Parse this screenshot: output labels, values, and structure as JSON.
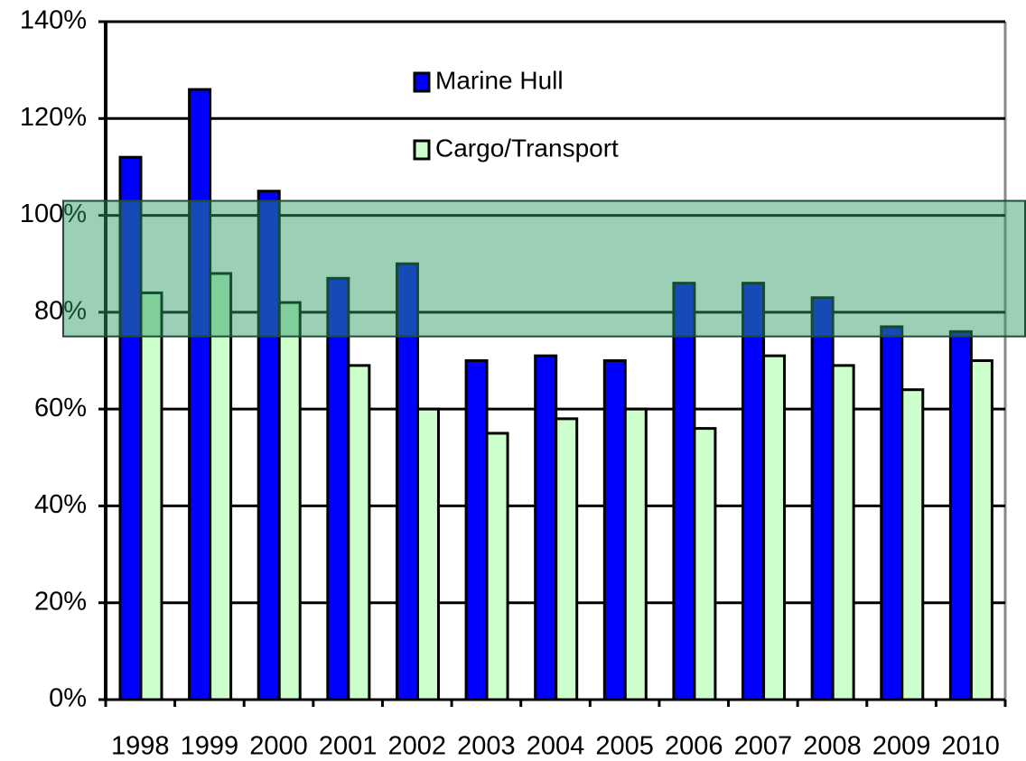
{
  "chart_data": {
    "type": "bar",
    "categories": [
      "1998",
      "1999",
      "2000",
      "2001",
      "2002",
      "2003",
      "2004",
      "2005",
      "2006",
      "2007",
      "2008",
      "2009",
      "2010"
    ],
    "series": [
      {
        "name": "Marine Hull",
        "color": "#0000ff",
        "values": [
          112,
          126,
          105,
          87,
          90,
          70,
          71,
          70,
          86,
          86,
          83,
          77,
          76
        ]
      },
      {
        "name": "Cargo/Transport",
        "color": "#ccffcc",
        "values": [
          84,
          88,
          82,
          69,
          60,
          55,
          58,
          60,
          56,
          71,
          69,
          64,
          70
        ]
      }
    ],
    "ylim": [
      0,
      140
    ],
    "yticks": [
      {
        "value": 0,
        "label": "0%"
      },
      {
        "value": 20,
        "label": "20%"
      },
      {
        "value": 40,
        "label": "40%"
      },
      {
        "value": 60,
        "label": "60%"
      },
      {
        "value": 80,
        "label": "80%"
      },
      {
        "value": 100,
        "label": "100%"
      },
      {
        "value": 120,
        "label": "120%"
      },
      {
        "value": 140,
        "label": "140%"
      }
    ],
    "grid": true,
    "band": {
      "range": [
        75,
        103
      ],
      "color": "#2e9a66"
    }
  }
}
